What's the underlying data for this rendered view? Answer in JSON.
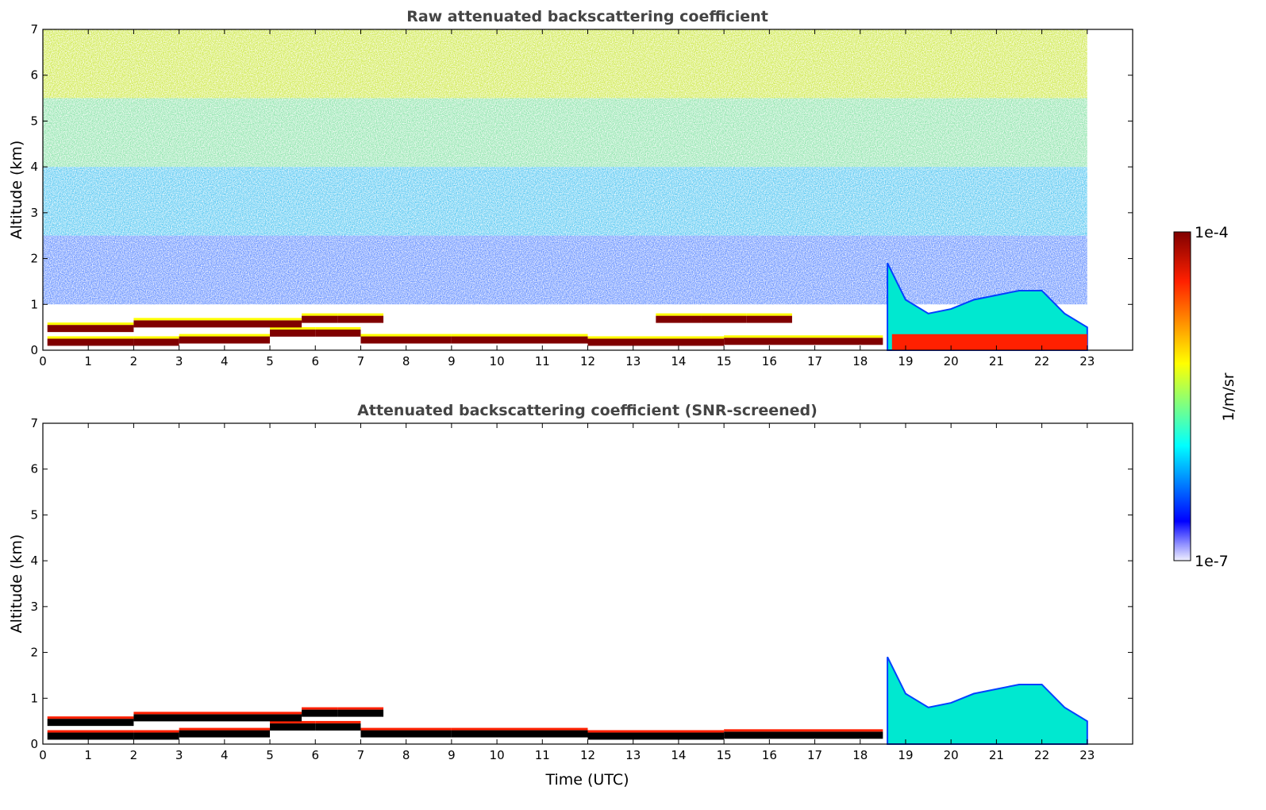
{
  "chart_data": [
    {
      "type": "heatmap",
      "title": "Raw attenuated backscattering coefficient",
      "xlabel": "",
      "ylabel": "Altitude (km)",
      "xlim": [
        0,
        24
      ],
      "ylim": [
        0,
        7
      ],
      "xticks": [
        "0",
        "1",
        "2",
        "3",
        "4",
        "5",
        "6",
        "7",
        "8",
        "9",
        "10",
        "11",
        "12",
        "13",
        "14",
        "15",
        "16",
        "17",
        "18",
        "19",
        "20",
        "21",
        "22",
        "23"
      ],
      "yticks": [
        "0",
        "1",
        "2",
        "3",
        "4",
        "5",
        "6",
        "7"
      ],
      "data_time_range": [
        0,
        23
      ],
      "features": [
        {
          "desc": "boundary layer top",
          "x": [
            0.1,
            2,
            3,
            5,
            6,
            7,
            9,
            12,
            15,
            18.5
          ],
          "y": [
            0.15,
            0.2,
            0.2,
            0.25,
            0.4,
            0.25,
            0.25,
            0.2,
            0.2,
            0.22
          ],
          "level": "high"
        },
        {
          "desc": "residual layer",
          "x": [
            0.1,
            2,
            5.7,
            6.5,
            7.5
          ],
          "y": [
            0.45,
            0.5,
            0.6,
            0.7,
            0.65
          ],
          "level": "high"
        },
        {
          "desc": "elevated layer",
          "x": [
            13.5,
            14.5,
            15.5,
            16.5
          ],
          "y": [
            0.65,
            0.7,
            0.7,
            0.7
          ],
          "level": "high"
        },
        {
          "desc": "evening aerosol plume",
          "x": [
            18.6,
            19,
            19.5,
            20,
            20.5,
            21,
            21.5,
            22,
            22.5,
            23
          ],
          "y": [
            1.9,
            1.1,
            0.8,
            0.9,
            1.1,
            1.2,
            1.3,
            1.3,
            0.8,
            0.5
          ],
          "level": "medium"
        },
        {
          "desc": "near-surface enhanced layer",
          "x": [
            18.7,
            23
          ],
          "y": [
            0.35,
            0.35
          ],
          "level": "high"
        }
      ]
    },
    {
      "type": "heatmap",
      "title": "Attenuated backscattering coefficient (SNR-screened)",
      "xlabel": "Time (UTC)",
      "ylabel": "Altitude (km)",
      "xlim": [
        0,
        24
      ],
      "ylim": [
        0,
        7
      ],
      "xticks": [
        "0",
        "1",
        "2",
        "3",
        "4",
        "5",
        "6",
        "7",
        "8",
        "9",
        "10",
        "11",
        "12",
        "13",
        "14",
        "15",
        "16",
        "17",
        "18",
        "19",
        "20",
        "21",
        "22",
        "23"
      ],
      "yticks": [
        "0",
        "1",
        "2",
        "3",
        "4",
        "5",
        "6",
        "7"
      ],
      "data_time_range": [
        0,
        23
      ],
      "features": [
        {
          "desc": "boundary layer top",
          "x": [
            0.1,
            2,
            3,
            5,
            6,
            7,
            9,
            12,
            15,
            18.5
          ],
          "y": [
            0.15,
            0.2,
            0.2,
            0.25,
            0.4,
            0.25,
            0.25,
            0.2,
            0.2,
            0.22
          ],
          "level": "saturated"
        },
        {
          "desc": "residual layer",
          "x": [
            0.1,
            2,
            5.7,
            6.5,
            7.5
          ],
          "y": [
            0.45,
            0.5,
            0.6,
            0.7,
            0.65
          ],
          "level": "saturated"
        },
        {
          "desc": "evening aerosol plume",
          "x": [
            18.6,
            19,
            19.5,
            20,
            20.5,
            21,
            21.5,
            22,
            22.5,
            23
          ],
          "y": [
            1.9,
            1.1,
            0.8,
            0.9,
            1.1,
            1.2,
            1.3,
            1.3,
            0.8,
            0.5
          ],
          "level": "medium"
        }
      ]
    }
  ],
  "colorbar": {
    "label": "1/m/sr",
    "max_label": "1e-4",
    "min_label": "1e-7",
    "colormap": [
      "#ffffff",
      "#0000ff",
      "#00ffff",
      "#ffff00",
      "#ff0000",
      "#800000"
    ]
  }
}
